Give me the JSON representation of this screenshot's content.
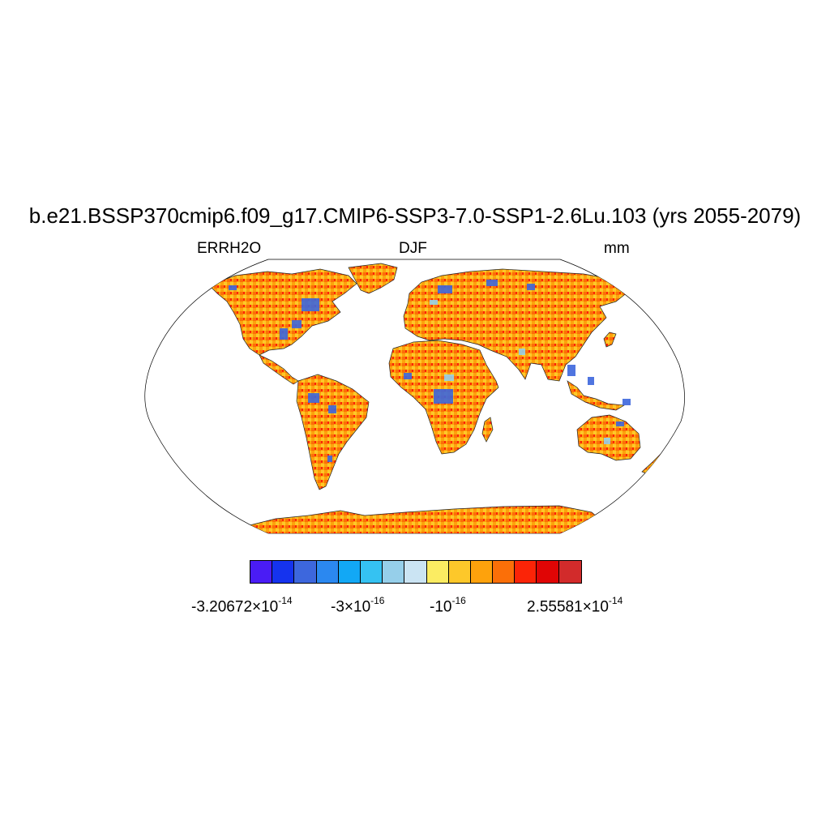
{
  "title": "b.e21.BSSP370cmip6.f09_g17.CMIP6-SSP3-7.0-SSP1-2.6Lu.103 (yrs 2055-2079)",
  "left_label": "ERRH2O",
  "center_label": "DJF",
  "right_label": "mm",
  "colorbar": {
    "colors": [
      "#4a1cf5",
      "#1533ee",
      "#3d67dd",
      "#2b88f0",
      "#12a8f5",
      "#35c2f2",
      "#96cfea",
      "#cbe4f3",
      "#fbec62",
      "#fdc82a",
      "#fea20c",
      "#fb6f08",
      "#fb2407",
      "#e00505",
      "#d22b2b"
    ],
    "labels": [
      {
        "mantissa": "-3.20672",
        "times": "×10",
        "exp": "-14"
      },
      {
        "mantissa": "-3",
        "times": "×10",
        "exp": "-16"
      },
      {
        "mantissa": "-10",
        "times": "",
        "exp": "-16"
      },
      {
        "mantissa": "2.55581",
        "times": "×10",
        "exp": "-14"
      }
    ]
  },
  "map": {
    "projection": "robinson",
    "land_color_main": "#fea20c",
    "palette_weights": "mostly warm orange-red with scattered blue cells"
  }
}
